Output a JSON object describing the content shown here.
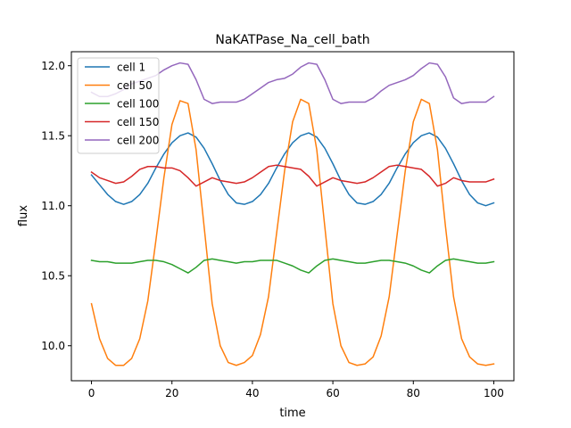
{
  "chart_data": {
    "type": "line",
    "title": "NaKATPase_Na_cell_bath",
    "xlabel": "time",
    "ylabel": "flux",
    "xlim": [
      -5,
      105
    ],
    "ylim": [
      9.75,
      12.1
    ],
    "xticks": [
      0,
      20,
      40,
      60,
      80,
      100
    ],
    "xtick_labels": [
      "0",
      "20",
      "40",
      "60",
      "80",
      "100"
    ],
    "yticks": [
      10.0,
      10.5,
      11.0,
      11.5,
      12.0
    ],
    "ytick_labels": [
      "10.0",
      "10.5",
      "11.0",
      "11.5",
      "12.0"
    ],
    "grid": false,
    "legend_position": "upper-left",
    "series": [
      {
        "name": "cell 1",
        "color": "#1f77b4",
        "x": [
          0,
          2,
          4,
          6,
          8,
          10,
          12,
          14,
          16,
          18,
          20,
          22,
          24,
          26,
          28,
          30,
          32,
          34,
          36,
          38,
          40,
          42,
          44,
          46,
          48,
          50,
          52,
          54,
          56,
          58,
          60,
          62,
          64,
          66,
          68,
          70,
          72,
          74,
          76,
          78,
          80,
          82,
          84,
          86,
          88,
          90,
          92,
          94,
          96,
          98,
          100
        ],
        "values": [
          11.22,
          11.15,
          11.08,
          11.03,
          11.01,
          11.03,
          11.08,
          11.16,
          11.27,
          11.37,
          11.45,
          11.5,
          11.52,
          11.49,
          11.41,
          11.3,
          11.18,
          11.08,
          11.02,
          11.01,
          11.03,
          11.08,
          11.16,
          11.27,
          11.37,
          11.45,
          11.5,
          11.52,
          11.49,
          11.41,
          11.3,
          11.18,
          11.08,
          11.02,
          11.01,
          11.03,
          11.08,
          11.16,
          11.27,
          11.37,
          11.45,
          11.5,
          11.52,
          11.49,
          11.41,
          11.3,
          11.18,
          11.08,
          11.02,
          11.0,
          11.02
        ]
      },
      {
        "name": "cell 50",
        "color": "#ff7f0e",
        "x": [
          0,
          2,
          4,
          6,
          8,
          10,
          12,
          14,
          16,
          18,
          20,
          22,
          24,
          26,
          28,
          30,
          32,
          34,
          36,
          38,
          40,
          42,
          44,
          46,
          48,
          50,
          52,
          54,
          56,
          58,
          60,
          62,
          64,
          66,
          68,
          70,
          72,
          74,
          76,
          78,
          80,
          82,
          84,
          86,
          88,
          90,
          92,
          94,
          96,
          98,
          100
        ],
        "values": [
          10.3,
          10.05,
          9.91,
          9.86,
          9.86,
          9.91,
          10.05,
          10.32,
          10.75,
          11.2,
          11.58,
          11.75,
          11.73,
          11.4,
          10.85,
          10.3,
          10.0,
          9.88,
          9.86,
          9.88,
          9.93,
          10.08,
          10.35,
          10.8,
          11.25,
          11.6,
          11.76,
          11.73,
          11.4,
          10.85,
          10.3,
          10.0,
          9.88,
          9.86,
          9.87,
          9.92,
          10.07,
          10.35,
          10.8,
          11.25,
          11.6,
          11.76,
          11.73,
          11.4,
          10.85,
          10.35,
          10.05,
          9.92,
          9.87,
          9.86,
          9.87
        ]
      },
      {
        "name": "cell 100",
        "color": "#2ca02c",
        "x": [
          0,
          2,
          4,
          6,
          8,
          10,
          12,
          14,
          16,
          18,
          20,
          22,
          24,
          26,
          28,
          30,
          32,
          34,
          36,
          38,
          40,
          42,
          44,
          46,
          48,
          50,
          52,
          54,
          56,
          58,
          60,
          62,
          64,
          66,
          68,
          70,
          72,
          74,
          76,
          78,
          80,
          82,
          84,
          86,
          88,
          90,
          92,
          94,
          96,
          98,
          100
        ],
        "values": [
          10.61,
          10.6,
          10.6,
          10.59,
          10.59,
          10.59,
          10.6,
          10.61,
          10.61,
          10.6,
          10.58,
          10.55,
          10.52,
          10.56,
          10.61,
          10.62,
          10.61,
          10.6,
          10.59,
          10.6,
          10.6,
          10.61,
          10.61,
          10.61,
          10.59,
          10.57,
          10.54,
          10.52,
          10.57,
          10.61,
          10.62,
          10.61,
          10.6,
          10.59,
          10.59,
          10.6,
          10.61,
          10.61,
          10.6,
          10.59,
          10.57,
          10.54,
          10.52,
          10.57,
          10.61,
          10.62,
          10.61,
          10.6,
          10.59,
          10.59,
          10.6
        ]
      },
      {
        "name": "cell 150",
        "color": "#d62728",
        "x": [
          0,
          2,
          4,
          6,
          8,
          10,
          12,
          14,
          16,
          18,
          20,
          22,
          24,
          26,
          28,
          30,
          32,
          34,
          36,
          38,
          40,
          42,
          44,
          46,
          48,
          50,
          52,
          54,
          56,
          58,
          60,
          62,
          64,
          66,
          68,
          70,
          72,
          74,
          76,
          78,
          80,
          82,
          84,
          86,
          88,
          90,
          92,
          94,
          96,
          98,
          100
        ],
        "values": [
          11.24,
          11.2,
          11.18,
          11.16,
          11.17,
          11.21,
          11.26,
          11.28,
          11.28,
          11.27,
          11.27,
          11.25,
          11.2,
          11.14,
          11.17,
          11.2,
          11.18,
          11.17,
          11.16,
          11.17,
          11.2,
          11.24,
          11.28,
          11.29,
          11.28,
          11.27,
          11.26,
          11.21,
          11.14,
          11.17,
          11.2,
          11.18,
          11.17,
          11.16,
          11.17,
          11.2,
          11.24,
          11.28,
          11.29,
          11.28,
          11.27,
          11.26,
          11.21,
          11.14,
          11.16,
          11.2,
          11.18,
          11.17,
          11.17,
          11.17,
          11.19
        ]
      },
      {
        "name": "cell 200",
        "color": "#9467bd",
        "x": [
          0,
          2,
          4,
          6,
          8,
          10,
          12,
          14,
          16,
          18,
          20,
          22,
          24,
          26,
          28,
          30,
          32,
          34,
          36,
          38,
          40,
          42,
          44,
          46,
          48,
          50,
          52,
          54,
          56,
          58,
          60,
          62,
          64,
          66,
          68,
          70,
          72,
          74,
          76,
          78,
          80,
          82,
          84,
          86,
          88,
          90,
          92,
          94,
          96,
          98,
          100
        ],
        "values": [
          11.81,
          11.78,
          11.78,
          11.8,
          11.83,
          11.87,
          11.89,
          11.91,
          11.93,
          11.97,
          12.0,
          12.02,
          12.01,
          11.9,
          11.76,
          11.73,
          11.74,
          11.74,
          11.74,
          11.76,
          11.8,
          11.84,
          11.88,
          11.9,
          11.91,
          11.94,
          11.99,
          12.02,
          12.01,
          11.9,
          11.76,
          11.73,
          11.74,
          11.74,
          11.74,
          11.77,
          11.82,
          11.86,
          11.88,
          11.9,
          11.93,
          11.98,
          12.02,
          12.01,
          11.92,
          11.77,
          11.73,
          11.74,
          11.74,
          11.74,
          11.78
        ]
      }
    ]
  }
}
